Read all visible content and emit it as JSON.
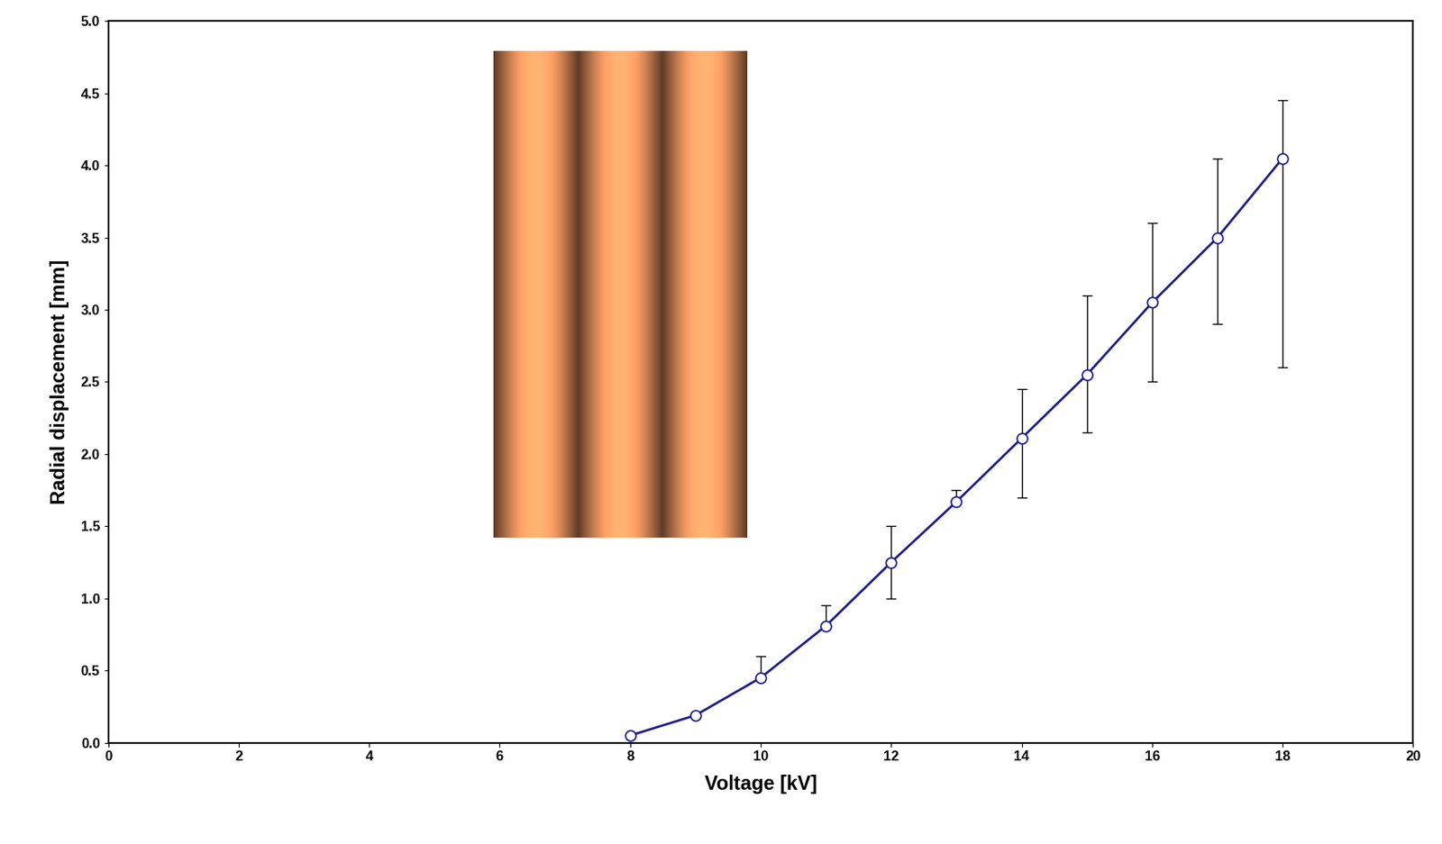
{
  "chart_data": {
    "type": "line",
    "xlabel": "Voltage [kV]",
    "ylabel": "Radial displacement [mm]",
    "x": [
      8,
      9,
      10,
      11,
      12,
      13,
      14,
      15,
      16,
      17,
      18
    ],
    "series": [
      {
        "name": "Radial displacement",
        "color": "#1c1c8c",
        "marker": "o",
        "line_style": "solid",
        "values": [
          0.05,
          0.19,
          0.45,
          0.81,
          1.25,
          1.67,
          2.11,
          2.55,
          3.05,
          3.5,
          4.05
        ],
        "error_minus": [
          0,
          0,
          0,
          0,
          0.25,
          0,
          0.41,
          0.4,
          0.55,
          0.6,
          1.45
        ],
        "error_plus": [
          0,
          0,
          0.15,
          0.14,
          0.25,
          0.08,
          0.34,
          0.55,
          0.55,
          0.55,
          0.4
        ]
      }
    ],
    "xlim": [
      0,
      20
    ],
    "xticks": [
      0,
      2,
      4,
      6,
      8,
      10,
      12,
      14,
      16,
      18,
      20
    ],
    "ylim": [
      0,
      5
    ],
    "yticks": [
      {
        "value": 0,
        "label": "0.0"
      },
      0.5,
      {
        "value": 1,
        "label": "1.0"
      },
      1.5,
      {
        "value": 2,
        "label": "2.0"
      },
      2.5,
      {
        "value": 3,
        "label": "3.0"
      },
      3.5,
      {
        "value": 4,
        "label": "4.0"
      },
      4.5,
      {
        "value": 5,
        "label": "5.0"
      }
    ],
    "grid": false
  }
}
